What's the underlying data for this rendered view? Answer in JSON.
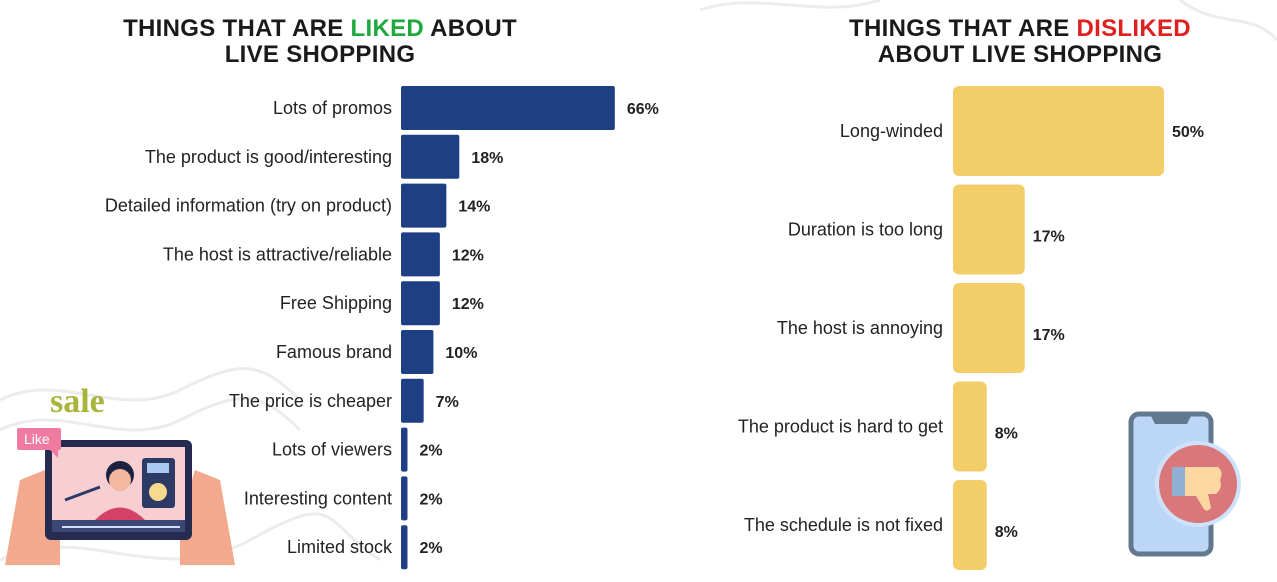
{
  "chart_data": [
    {
      "type": "bar",
      "orientation": "horizontal",
      "title": {
        "prefix": "THINGS THAT ARE ",
        "highlight": "LIKED",
        "suffix_line1": " ABOUT",
        "line2": "LIVE SHOPPING"
      },
      "highlight_color": "#1fa83c",
      "bar_color": "#1f3f85",
      "categories": [
        "Lots of promos",
        "The product is good/interesting",
        "Detailed information (try on product)",
        "The host is attractive/reliable",
        "Free Shipping",
        "Famous brand",
        "The price is cheaper",
        "Lots of viewers",
        "Interesting content",
        "Limited stock"
      ],
      "values": [
        66,
        18,
        14,
        12,
        12,
        10,
        7,
        2,
        2,
        2
      ],
      "value_suffix": "%",
      "grid": false
    },
    {
      "type": "bar",
      "orientation": "horizontal",
      "title": {
        "prefix": "THINGS THAT ARE ",
        "highlight": "DISLIKED",
        "suffix_line1": "",
        "line2": "ABOUT LIVE SHOPPING"
      },
      "highlight_color": "#e0201f",
      "bar_color": "#f3cd68",
      "categories": [
        "Long-winded",
        "Duration is too long",
        "The host is annoying",
        "The product is hard to get",
        "The schedule is not fixed"
      ],
      "values": [
        50,
        17,
        17,
        8,
        8
      ],
      "value_suffix": "%",
      "grid": false
    }
  ],
  "illustrations": {
    "left": {
      "name": "tablet-live-stream",
      "sale_text": "sale",
      "like_badge": "Like"
    },
    "right": {
      "name": "phone-thumbs-down"
    }
  }
}
